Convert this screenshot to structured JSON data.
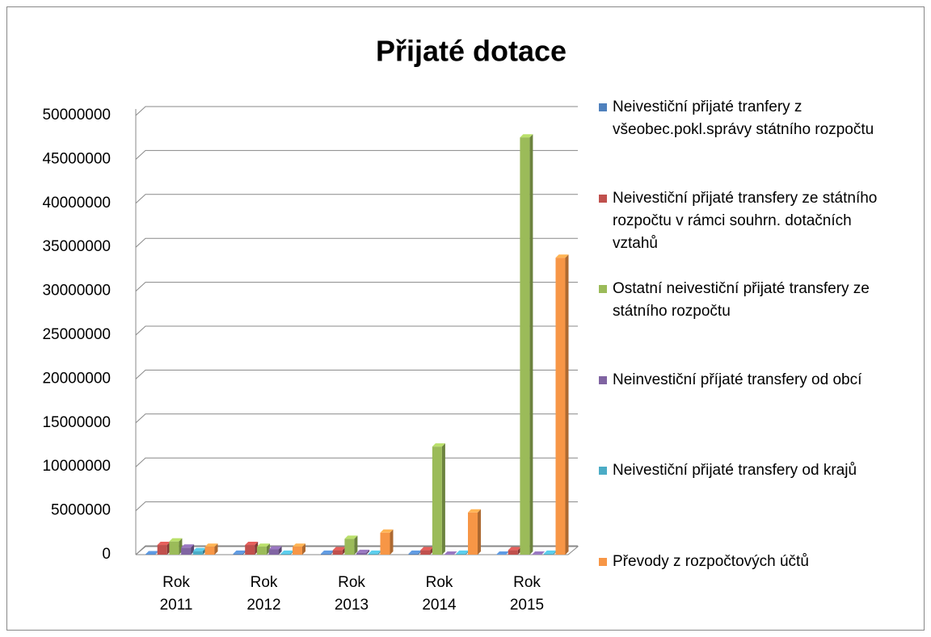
{
  "chart_data": {
    "type": "bar3d",
    "title": "Přijaté dotace",
    "categories": [
      "Rok 2011",
      "Rok 2012",
      "Rok 2013",
      "Rok 2014",
      "Rok 2015"
    ],
    "series": [
      {
        "name": "Neivestiční přijaté tranfery z všeobec.pokl.správy státního rozpočtu",
        "color": "#4f81bd",
        "values": [
          50000,
          100000,
          100000,
          100000,
          0
        ]
      },
      {
        "name": "Neivestiční přijaté transfery ze státního rozpočtu v rámci souhrn. dotačních vztahů",
        "color": "#c0504d",
        "values": [
          1100000,
          1100000,
          500000,
          500000,
          500000
        ]
      },
      {
        "name": "Ostatní neivestiční přijaté transfery ze státního rozpočtu",
        "color": "#9bbb59",
        "values": [
          1500000,
          900000,
          1800000,
          12300000,
          47500000
        ]
      },
      {
        "name": "Neinvestiční příjaté transfery od obcí",
        "color": "#8064a2",
        "values": [
          800000,
          600000,
          200000,
          0,
          0
        ]
      },
      {
        "name": "Neivestiční přijaté transfery od krajů",
        "color": "#4bacc6",
        "values": [
          400000,
          100000,
          100000,
          100000,
          100000
        ]
      },
      {
        "name": "Převody z rozpočtových účtů",
        "color": "#f79646",
        "values": [
          900000,
          900000,
          2500000,
          4800000,
          33800000
        ]
      }
    ],
    "ylim": [
      0,
      50000000
    ],
    "yticks": [
      0,
      5000000,
      10000000,
      15000000,
      20000000,
      25000000,
      30000000,
      35000000,
      40000000,
      45000000,
      50000000
    ],
    "grid": true,
    "legend": "right"
  }
}
